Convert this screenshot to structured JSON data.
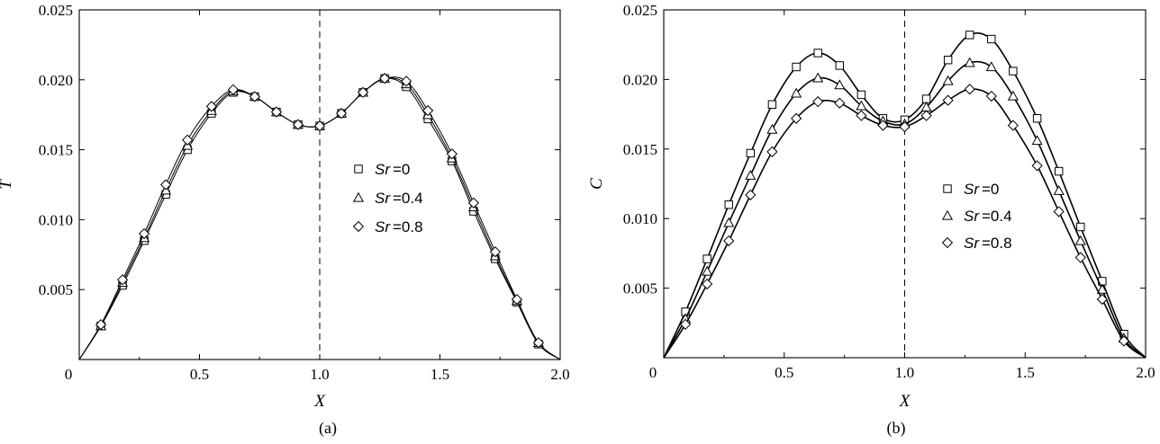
{
  "chart_data": [
    {
      "type": "line",
      "panel_caption": "(a)",
      "xlabel": "X",
      "ylabel": "T",
      "xlim": [
        0,
        2.0
      ],
      "ylim": [
        0,
        0.025
      ],
      "x_ticks": [
        "0",
        "0.5",
        "1.0",
        "1.5",
        "2.0"
      ],
      "y_ticks": [
        "0.005",
        "0.010",
        "0.015",
        "0.020",
        "0.025"
      ],
      "reference_line_x": 1.0,
      "legend_position": "right",
      "series": [
        {
          "name_symbol": "Sr",
          "name_value": "=0",
          "marker": "square",
          "x": [
            0,
            0.09,
            0.18,
            0.27,
            0.36,
            0.45,
            0.55,
            0.64,
            0.73,
            0.82,
            0.91,
            1.0,
            1.09,
            1.18,
            1.27,
            1.36,
            1.45,
            1.55,
            1.64,
            1.73,
            1.82,
            1.91,
            2.0
          ],
          "y": [
            0,
            0.0024,
            0.0053,
            0.0085,
            0.0118,
            0.015,
            0.0176,
            0.0191,
            0.0188,
            0.0177,
            0.0168,
            0.0167,
            0.0176,
            0.0191,
            0.0201,
            0.0195,
            0.0172,
            0.0142,
            0.0106,
            0.0072,
            0.0041,
            0.0011,
            0
          ]
        },
        {
          "name_symbol": "Sr",
          "name_value": "=0.4",
          "marker": "triangle",
          "x": [
            0,
            0.09,
            0.18,
            0.27,
            0.36,
            0.45,
            0.55,
            0.64,
            0.73,
            0.82,
            0.91,
            1.0,
            1.09,
            1.18,
            1.27,
            1.36,
            1.45,
            1.55,
            1.64,
            1.73,
            1.82,
            1.91,
            2.0
          ],
          "y": [
            0,
            0.0024,
            0.0055,
            0.0087,
            0.0121,
            0.0153,
            0.0178,
            0.0192,
            0.0188,
            0.0177,
            0.0168,
            0.0167,
            0.0176,
            0.0191,
            0.0201,
            0.0197,
            0.0175,
            0.0144,
            0.0109,
            0.0074,
            0.0042,
            0.0012,
            0
          ]
        },
        {
          "name_symbol": "Sr",
          "name_value": "=0.8",
          "marker": "diamond",
          "x": [
            0,
            0.09,
            0.18,
            0.27,
            0.36,
            0.45,
            0.55,
            0.64,
            0.73,
            0.82,
            0.91,
            1.0,
            1.09,
            1.18,
            1.27,
            1.36,
            1.45,
            1.55,
            1.64,
            1.73,
            1.82,
            1.91,
            2.0
          ],
          "y": [
            0,
            0.0025,
            0.0057,
            0.009,
            0.0125,
            0.0157,
            0.0181,
            0.0193,
            0.0188,
            0.0177,
            0.0168,
            0.0167,
            0.0176,
            0.0191,
            0.0201,
            0.0199,
            0.0178,
            0.0147,
            0.0112,
            0.0077,
            0.0043,
            0.0012,
            0
          ]
        }
      ]
    },
    {
      "type": "line",
      "panel_caption": "(b)",
      "xlabel": "X",
      "ylabel": "C",
      "xlim": [
        0,
        2.0
      ],
      "ylim": [
        0,
        0.025
      ],
      "x_ticks": [
        "0",
        "0.5",
        "1.0",
        "1.5",
        "2.0"
      ],
      "y_ticks": [
        "0.005",
        "0.010",
        "0.015",
        "0.020",
        "0.025"
      ],
      "reference_line_x": 1.0,
      "legend_position": "right",
      "series": [
        {
          "name_symbol": "Sr",
          "name_value": "=0",
          "marker": "square",
          "x": [
            0,
            0.09,
            0.18,
            0.27,
            0.36,
            0.45,
            0.55,
            0.64,
            0.73,
            0.82,
            0.91,
            1.0,
            1.09,
            1.18,
            1.27,
            1.36,
            1.45,
            1.55,
            1.64,
            1.73,
            1.82,
            1.91,
            2.0
          ],
          "y": [
            0,
            0.0033,
            0.0071,
            0.011,
            0.0147,
            0.0182,
            0.0209,
            0.0219,
            0.021,
            0.0189,
            0.0172,
            0.0171,
            0.0186,
            0.0214,
            0.0232,
            0.0229,
            0.0206,
            0.0172,
            0.0134,
            0.0094,
            0.0055,
            0.0017,
            0
          ]
        },
        {
          "name_symbol": "Sr",
          "name_value": "=0.4",
          "marker": "triangle",
          "x": [
            0,
            0.09,
            0.18,
            0.27,
            0.36,
            0.45,
            0.55,
            0.64,
            0.73,
            0.82,
            0.91,
            1.0,
            1.09,
            1.18,
            1.27,
            1.36,
            1.45,
            1.55,
            1.64,
            1.73,
            1.82,
            1.91,
            2.0
          ],
          "y": [
            0,
            0.0028,
            0.0062,
            0.0097,
            0.0131,
            0.0164,
            0.019,
            0.0201,
            0.0196,
            0.0181,
            0.017,
            0.0168,
            0.018,
            0.0199,
            0.0212,
            0.0209,
            0.0188,
            0.0156,
            0.012,
            0.0084,
            0.0049,
            0.0014,
            0
          ]
        },
        {
          "name_symbol": "Sr",
          "name_value": "=0.8",
          "marker": "diamond",
          "x": [
            0,
            0.09,
            0.18,
            0.27,
            0.36,
            0.45,
            0.55,
            0.64,
            0.73,
            0.82,
            0.91,
            1.0,
            1.09,
            1.18,
            1.27,
            1.36,
            1.45,
            1.55,
            1.64,
            1.73,
            1.82,
            1.91,
            2.0
          ],
          "y": [
            0,
            0.0024,
            0.0053,
            0.0084,
            0.0117,
            0.0148,
            0.0172,
            0.0184,
            0.0183,
            0.0174,
            0.0167,
            0.0166,
            0.0174,
            0.0185,
            0.0193,
            0.0188,
            0.0167,
            0.0138,
            0.0105,
            0.0072,
            0.0042,
            0.0012,
            0
          ]
        }
      ]
    }
  ]
}
